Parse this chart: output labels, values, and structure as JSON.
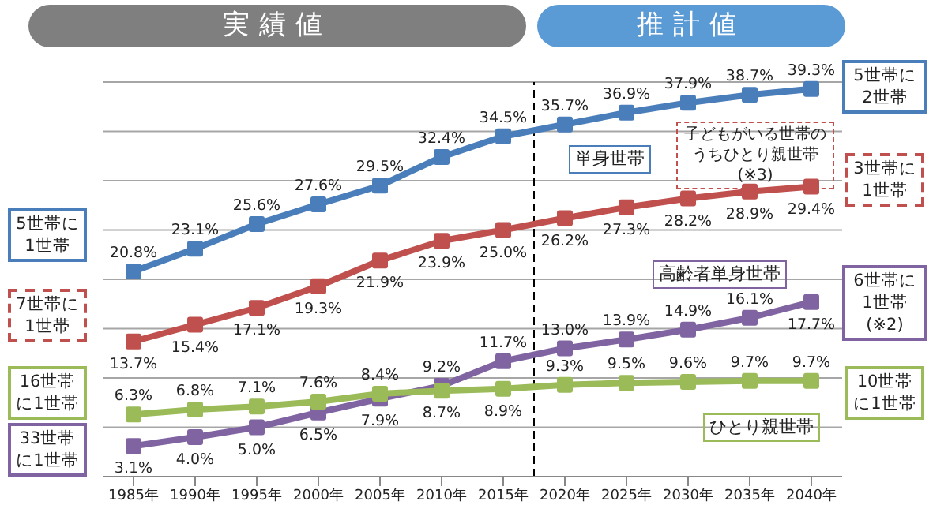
{
  "chart_data": {
    "type": "line",
    "x": [
      1985,
      1990,
      1995,
      2000,
      2005,
      2010,
      2015,
      2020,
      2025,
      2030,
      2035,
      2040
    ],
    "xlim": [
      1982.5,
      2042.5
    ],
    "xticks": [
      {
        "value": 1985,
        "label": "1985年"
      },
      {
        "value": 1990,
        "label": "1990年"
      },
      {
        "value": 1995,
        "label": "1995年"
      },
      {
        "value": 2000,
        "label": "2000年"
      },
      {
        "value": 2005,
        "label": "2005年"
      },
      {
        "value": 2010,
        "label": "2010年"
      },
      {
        "value": 2015,
        "label": "2015年"
      },
      {
        "value": 2020,
        "label": "2020年"
      },
      {
        "value": 2025,
        "label": "2025年"
      },
      {
        "value": 2030,
        "label": "2030年"
      },
      {
        "value": 2035,
        "label": "2035年"
      },
      {
        "value": 2040,
        "label": "2040年"
      }
    ],
    "tick_labels": "x",
    "grid": "y",
    "marker": "square",
    "line_style": "solid",
    "series": [
      {
        "name": "単身世帯",
        "color": "#4a7ebb",
        "values": [
          20.8,
          23.1,
          25.6,
          27.6,
          29.5,
          32.4,
          34.5,
          35.7,
          36.9,
          37.9,
          38.7,
          39.3
        ],
        "value_labels": [
          "20.8%",
          "23.1%",
          "25.6%",
          "27.6%",
          "29.5%",
          "32.4%",
          "34.5%",
          "35.7%",
          "36.9%",
          "37.9%",
          "38.7%",
          "39.3%"
        ]
      },
      {
        "name": "子どもがいる世帯のうちひとり親世帯(※3)",
        "color": "#c0504d",
        "values": [
          13.7,
          15.4,
          17.1,
          19.3,
          21.9,
          23.9,
          25.0,
          26.2,
          27.3,
          28.2,
          28.9,
          29.4
        ],
        "value_labels": [
          "13.7%",
          "15.4%",
          "17.1%",
          "19.3%",
          "21.9%",
          "23.9%",
          "25.0%",
          "26.2%",
          "27.3%",
          "28.2%",
          "28.9%",
          "29.4%"
        ]
      },
      {
        "name": "高齢者単身世帯",
        "color": "#8064a2",
        "values": [
          3.1,
          4.0,
          5.0,
          6.5,
          7.9,
          9.2,
          11.7,
          13.0,
          13.9,
          14.9,
          16.1,
          17.7
        ],
        "value_labels": [
          "3.1%",
          "4.0%",
          "5.0%",
          "6.5%",
          "7.9%",
          "9.2%",
          "11.7%",
          "13.0%",
          "13.9%",
          "14.9%",
          "16.1%",
          "17.7%"
        ]
      },
      {
        "name": "ひとり親世帯",
        "color": "#9bbb59",
        "values": [
          6.3,
          6.8,
          7.1,
          7.6,
          8.4,
          8.7,
          8.9,
          9.3,
          9.5,
          9.6,
          9.7,
          9.7
        ],
        "value_labels": [
          "6.3%",
          "6.8%",
          "7.1%",
          "7.6%",
          "8.4%",
          "8.7%",
          "8.9%",
          "9.3%",
          "9.5%",
          "9.6%",
          "9.7%",
          "9.7%"
        ]
      }
    ],
    "ref_lines": [
      {
        "axis": "x",
        "value": 2017.5,
        "color": "#000000",
        "line_style": "dashed"
      }
    ],
    "annotations": [
      "実績値",
      "推計値",
      "5世帯に1世帯",
      "7世帯に1世帯",
      "16世帯に1世帯",
      "33世帯に1世帯",
      "5世帯に2世帯",
      "3世帯に1世帯",
      "6世帯に1世帯(※2)",
      "10世帯に1世帯"
    ]
  }
}
